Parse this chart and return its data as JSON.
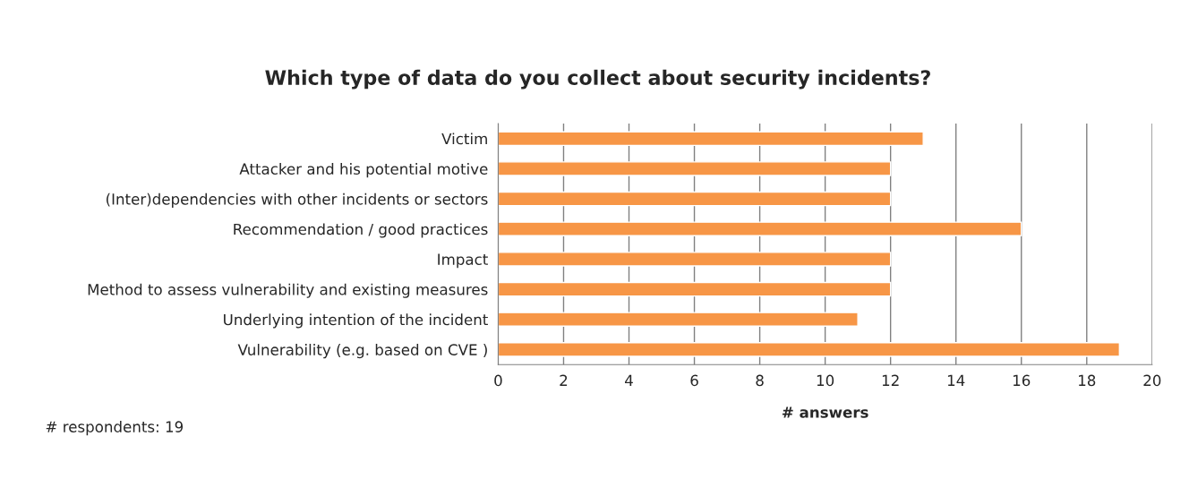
{
  "chart_data": {
    "type": "bar",
    "orientation": "horizontal",
    "title": "Which type of data do you collect about security incidents?",
    "xlabel": "# answers",
    "categories": [
      "Victim",
      "Attacker and his potential motive",
      "(Inter)dependencies with other incidents or sectors",
      "Recommendation / good practices",
      "Impact",
      "Method to assess vulnerability and existing measures",
      "Underlying intention of the incident",
      "Vulnerability (e.g. based on CVE )"
    ],
    "values": [
      13,
      12,
      12,
      16,
      12,
      12,
      11,
      19
    ],
    "color": "#f79646",
    "xlim": [
      0,
      20
    ],
    "xticks": [
      0,
      2,
      4,
      6,
      8,
      10,
      12,
      14,
      16,
      18,
      20
    ],
    "grid": "x",
    "legend": false,
    "annotations": [
      "# respondents: 19"
    ]
  }
}
